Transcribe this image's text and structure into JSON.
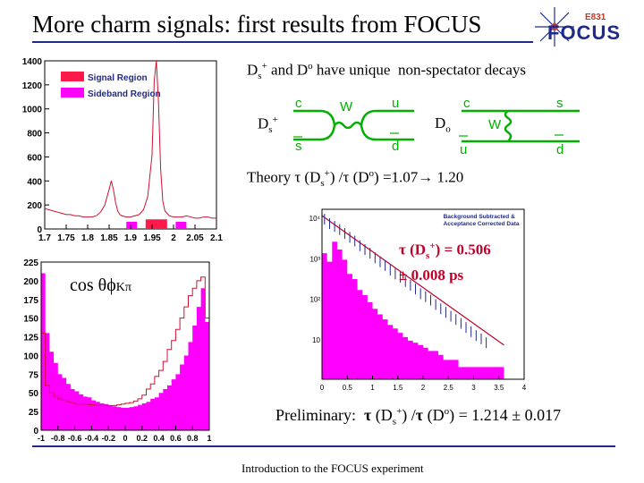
{
  "slide": {
    "title": "More charm signals: first results from FOCUS",
    "footer": "Introduction to the FOCUS experiment"
  },
  "logo": {
    "experiment": "E831",
    "name": "FOCUS",
    "icon": "star-burst-icon"
  },
  "decays": {
    "headline": "Ds+ and Do have unique non-spectator decays",
    "ds_label": "Ds+",
    "ds_quarks": {
      "top": "c",
      "bottom": "s",
      "w": "W",
      "out_top": "u",
      "out_bottom": "d"
    },
    "d0_label": "Do",
    "d0_quarks": {
      "top_in": "c",
      "bottom_in": "u",
      "w": "W",
      "top_out": "s",
      "bottom_out": "d"
    }
  },
  "theory": {
    "text": "Theory τ (Ds+) /τ (Do) =1.07→ 1.20"
  },
  "measurement": {
    "line1": "τ (Ds+) = 0.506",
    "line2": "± 0.008 ps"
  },
  "angle_label": "cos θϕKπ",
  "preliminary": {
    "text": "Preliminary: τ (Ds+) /τ (Do) = 1.214 ± 0.017"
  },
  "legend_lifetime": {
    "line1": "Background Subtracted &",
    "line2": "Acceptance Corrected Data"
  },
  "chart_data": [
    {
      "type": "bar",
      "name": "mass",
      "legend": [
        {
          "label": "Signal Region",
          "color": "#ff1a4a"
        },
        {
          "label": "Sideband Region",
          "color": "#ff00ff"
        }
      ],
      "xlim": [
        1.7,
        2.1
      ],
      "ylim": [
        0,
        1400
      ],
      "xticks": [
        "1.7",
        "1.75",
        "1.8",
        "1.85",
        "1.9",
        "1.95",
        "2",
        "2.05",
        "2.1"
      ],
      "yticks": [
        "0",
        "200",
        "400",
        "600",
        "800",
        "1000",
        "1200",
        "1400"
      ],
      "series_outline": {
        "x": [
          1.7,
          1.71,
          1.72,
          1.73,
          1.74,
          1.75,
          1.76,
          1.77,
          1.78,
          1.79,
          1.8,
          1.81,
          1.82,
          1.83,
          1.84,
          1.85,
          1.855,
          1.86,
          1.865,
          1.87,
          1.875,
          1.88,
          1.89,
          1.9,
          1.91,
          1.92,
          1.93,
          1.94,
          1.95,
          1.955,
          1.96,
          1.965,
          1.97,
          1.975,
          1.98,
          1.99,
          2.0,
          2.01,
          2.02,
          2.03,
          2.04,
          2.05,
          2.06,
          2.07,
          2.08,
          2.09,
          2.1
        ],
        "y": [
          170,
          160,
          150,
          140,
          130,
          120,
          120,
          110,
          110,
          100,
          100,
          100,
          110,
          140,
          200,
          330,
          400,
          330,
          220,
          150,
          120,
          110,
          100,
          100,
          110,
          120,
          160,
          270,
          620,
          1230,
          1400,
          1050,
          500,
          230,
          150,
          110,
          100,
          100,
          100,
          110,
          100,
          90,
          90,
          100,
          100,
          90,
          90
        ]
      },
      "signal_region": [
        1.935,
        1.985
      ],
      "sideband_regions": [
        [
          1.89,
          1.915
        ],
        [
          2.005,
          2.03
        ]
      ]
    },
    {
      "type": "bar",
      "name": "cos-theta",
      "xlim": [
        -1,
        1
      ],
      "ylim": [
        0,
        225
      ],
      "xticks": [
        "-1",
        "-0.8",
        "-0.6",
        "-0.4",
        "-0.2",
        "0",
        "0.2",
        "0.4",
        "0.6",
        "0.8",
        "1"
      ],
      "yticks": [
        "0",
        "25",
        "50",
        "75",
        "100",
        "125",
        "150",
        "175",
        "200",
        "225"
      ],
      "fill": {
        "x": [
          -1.0,
          -0.95,
          -0.9,
          -0.85,
          -0.8,
          -0.75,
          -0.7,
          -0.65,
          -0.6,
          -0.55,
          -0.5,
          -0.45,
          -0.4,
          -0.35,
          -0.3,
          -0.25,
          -0.2,
          -0.15,
          -0.1,
          -0.05,
          0.0,
          0.05,
          0.1,
          0.15,
          0.2,
          0.25,
          0.3,
          0.35,
          0.4,
          0.45,
          0.5,
          0.55,
          0.6,
          0.65,
          0.7,
          0.75,
          0.8,
          0.85,
          0.9,
          0.95
        ],
        "y": [
          210,
          130,
          105,
          90,
          75,
          70,
          62,
          55,
          52,
          48,
          45,
          44,
          40,
          38,
          36,
          35,
          33,
          32,
          31,
          30,
          30,
          31,
          32,
          34,
          36,
          38,
          42,
          44,
          50,
          55,
          60,
          68,
          75,
          88,
          100,
          118,
          140,
          165,
          190,
          145
        ]
      },
      "outline": {
        "x": [
          -1.0,
          -0.95,
          -0.9,
          -0.85,
          -0.8,
          -0.75,
          -0.7,
          -0.65,
          -0.6,
          -0.55,
          -0.5,
          -0.45,
          -0.4,
          -0.35,
          -0.3,
          -0.25,
          -0.2,
          -0.15,
          -0.1,
          -0.05,
          0.0,
          0.05,
          0.1,
          0.15,
          0.2,
          0.25,
          0.3,
          0.35,
          0.4,
          0.45,
          0.5,
          0.55,
          0.6,
          0.65,
          0.7,
          0.75,
          0.8,
          0.85,
          0.9,
          0.95
        ],
        "y": [
          130,
          60,
          50,
          45,
          42,
          40,
          38,
          37,
          35,
          35,
          35,
          34,
          34,
          33,
          33,
          33,
          33,
          33,
          34,
          35,
          36,
          37,
          39,
          42,
          47,
          55,
          62,
          72,
          80,
          92,
          108,
          120,
          135,
          150,
          165,
          180,
          190,
          200,
          205,
          150
        ]
      }
    },
    {
      "type": "bar",
      "name": "lifetime",
      "xlim": [
        0,
        4
      ],
      "xticks": [
        "0",
        "0.5",
        "1",
        "1.5",
        "2",
        "2.5",
        "3",
        "3.5",
        "4"
      ],
      "yticks": [
        "10⁴",
        "10³",
        "10²",
        "10"
      ],
      "log_scale": true,
      "fill": {
        "x": [
          0.0,
          0.1,
          0.2,
          0.3,
          0.4,
          0.5,
          0.6,
          0.7,
          0.8,
          0.9,
          1.0,
          1.1,
          1.2,
          1.3,
          1.4,
          1.5,
          1.6,
          1.7,
          1.8,
          1.9,
          2.0,
          2.1,
          2.2,
          2.3,
          2.4,
          2.5,
          2.6,
          2.7,
          2.8,
          2.9,
          3.0,
          3.1,
          3.2,
          3.3,
          3.4,
          3.5
        ],
        "y": [
          1300,
          800,
          2500,
          1600,
          900,
          400,
          300,
          160,
          120,
          80,
          55,
          40,
          30,
          22,
          18,
          14,
          11,
          9,
          8,
          7,
          6,
          5,
          5,
          4,
          3,
          3,
          3,
          2,
          2,
          2,
          2,
          2,
          2,
          2,
          2,
          2
        ]
      },
      "data_points": {
        "x": [
          0.05,
          0.15,
          0.25,
          0.35,
          0.45,
          0.55,
          0.65,
          0.75,
          0.85,
          0.95,
          1.05,
          1.15,
          1.25,
          1.35,
          1.45,
          1.55,
          1.65,
          1.75,
          1.85,
          1.95,
          2.05,
          2.15,
          2.25,
          2.35,
          2.45,
          2.55,
          2.65,
          2.75,
          2.85,
          2.95,
          3.05,
          3.15,
          3.25
        ],
        "y": [
          9000,
          7000,
          6000,
          5000,
          4000,
          3200,
          2600,
          2000,
          1600,
          1300,
          1000,
          800,
          650,
          500,
          400,
          330,
          260,
          210,
          170,
          130,
          110,
          90,
          70,
          55,
          45,
          36,
          30,
          24,
          19,
          15,
          12,
          10,
          8
        ]
      },
      "fit_line": {
        "x": [
          0.0,
          3.6
        ],
        "y": [
          11000,
          7
        ]
      }
    }
  ]
}
